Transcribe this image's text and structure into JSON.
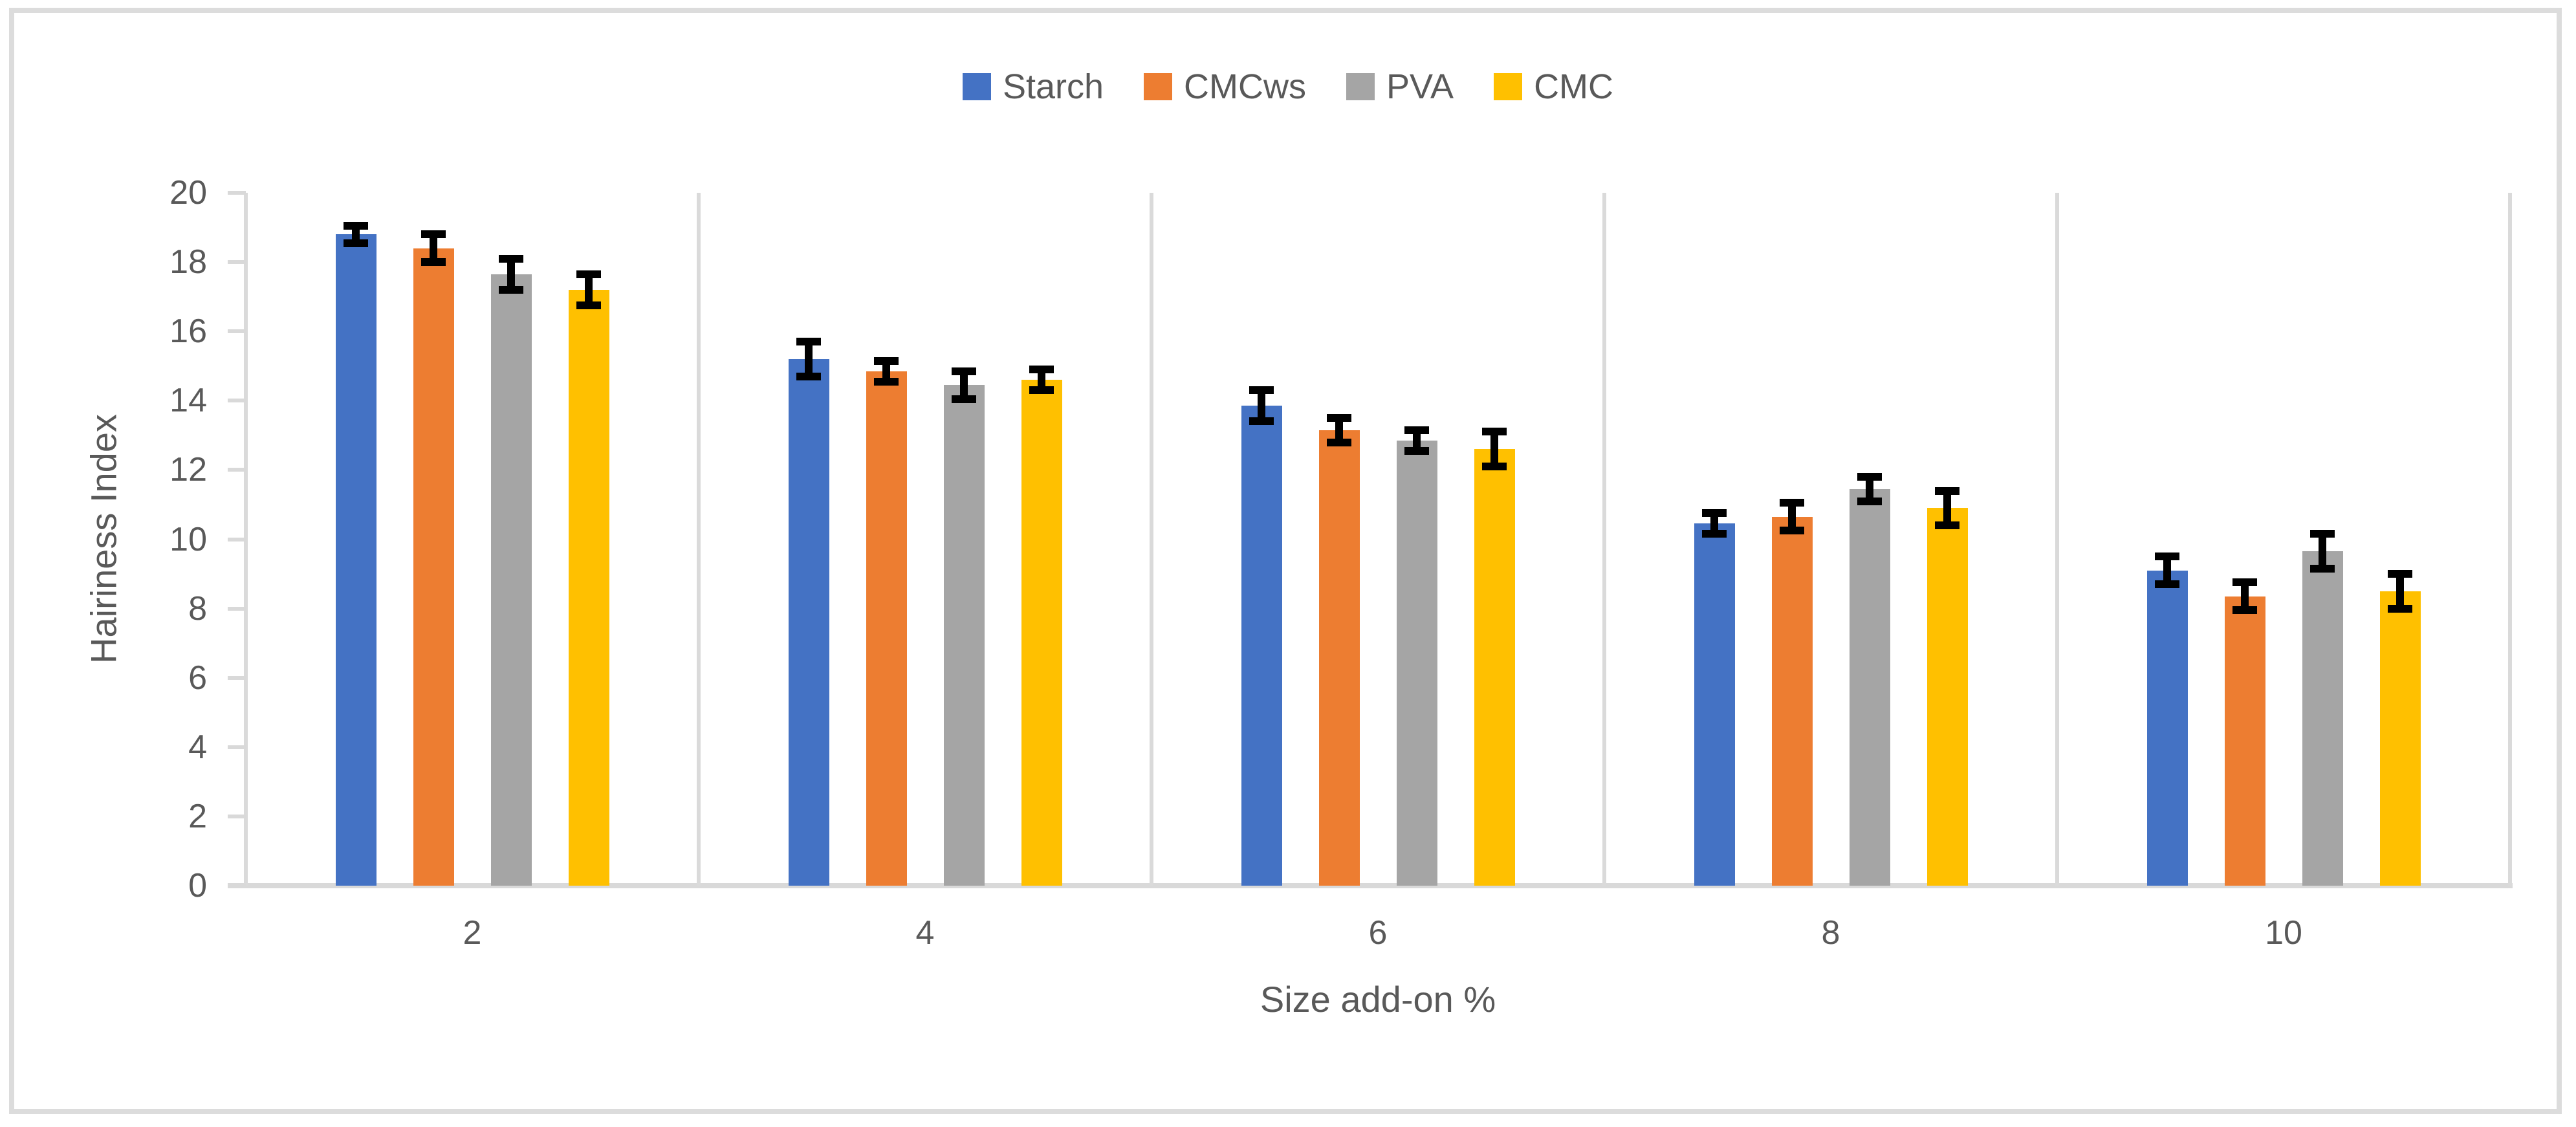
{
  "chart_data": {
    "type": "bar",
    "title": "",
    "xlabel": "Size add-on %",
    "ylabel": "Hairiness Index",
    "categories": [
      "2",
      "4",
      "6",
      "8",
      "10"
    ],
    "series": [
      {
        "name": "Starch",
        "color": "#4472C4",
        "values": [
          18.8,
          15.2,
          13.85,
          10.45,
          9.1
        ],
        "errors": [
          0.25,
          0.5,
          0.45,
          0.3,
          0.4
        ]
      },
      {
        "name": "CMCws",
        "color": "#ED7D31",
        "values": [
          18.4,
          14.85,
          13.15,
          10.65,
          8.35
        ],
        "errors": [
          0.4,
          0.3,
          0.35,
          0.4,
          0.4
        ]
      },
      {
        "name": "PVA",
        "color": "#A5A5A5",
        "values": [
          17.65,
          14.45,
          12.85,
          11.45,
          9.65
        ],
        "errors": [
          0.45,
          0.4,
          0.3,
          0.35,
          0.5
        ]
      },
      {
        "name": "CMC",
        "color": "#FFC000",
        "values": [
          17.2,
          14.6,
          12.6,
          10.9,
          8.5
        ],
        "errors": [
          0.45,
          0.3,
          0.5,
          0.5,
          0.5
        ]
      }
    ],
    "ylim": [
      0,
      20
    ],
    "yticks": [
      0,
      2,
      4,
      6,
      8,
      10,
      12,
      14,
      16,
      18,
      20
    ],
    "legend_position": "top",
    "grid": "vertical category dividers only, no horizontal gridlines",
    "error_bars": "black caps, plus/minus"
  },
  "colors": {
    "axis_line": "#d9d9d9",
    "divider_line": "#dadada",
    "text": "#595959",
    "frame_border": "#dcdcdc",
    "error_bar": "#000000",
    "background": "#ffffff"
  }
}
